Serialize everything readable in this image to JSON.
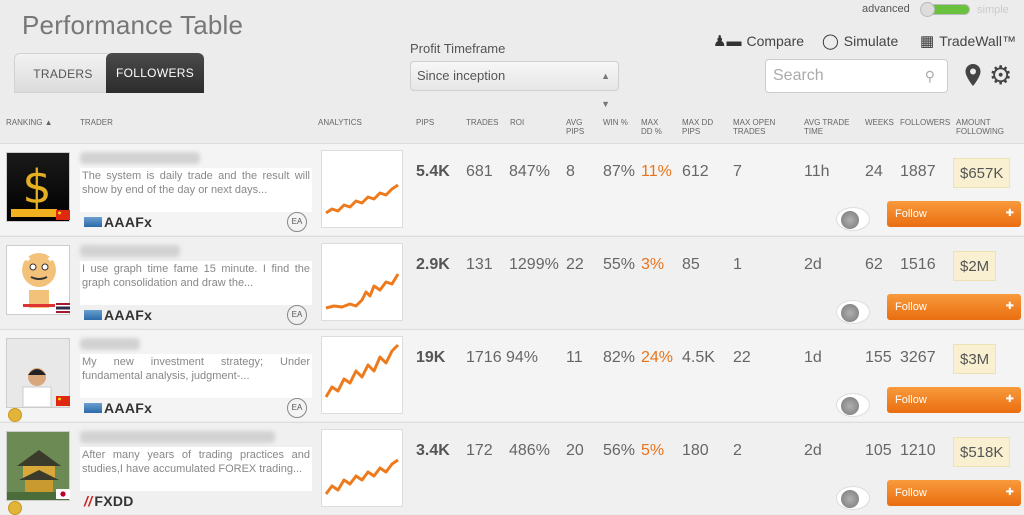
{
  "title": "Performance Table",
  "tabs": [
    "TRADERS",
    "FOLLOWERS"
  ],
  "profit_timeframe": {
    "label": "Profit Timeframe",
    "value": "Since inception"
  },
  "mode": {
    "advanced": "advanced",
    "simple": "simple"
  },
  "tools": {
    "compare": "Compare",
    "simulate": "Simulate",
    "tradewall": "TradeWall™"
  },
  "search": {
    "placeholder": "Search"
  },
  "headers": {
    "ranking": "RANKING ▲",
    "trader": "TRADER",
    "analytics": "ANALYTICS",
    "pips": "PIPS",
    "trades": "TRADES",
    "roi": "ROI",
    "avg_pips": "AVG PIPS",
    "win": "WIN %",
    "max_dd_pct": "MAX DD %",
    "max_dd_pips": "MAX DD PIPS",
    "max_open": "MAX OPEN TRADES",
    "avg_time": "AVG TRADE TIME",
    "weeks": "WEEKS",
    "followers": "FOLLOWERS",
    "amount": "AMOUNT FOLLOWING"
  },
  "colors": {
    "accent": "#e8731c",
    "follow_button": "#f28a2e",
    "amount_bg": "#f8f0d0"
  },
  "follow_label": "Follow",
  "rows": [
    {
      "desc": "The system is daily trade and the result will show by end of the day or next days...",
      "broker": "AAAFx",
      "badge": "EA",
      "pips": "5.4K",
      "trades": "681",
      "roi": "847%",
      "avg_pips": "8",
      "win": "87%",
      "max_dd": "11%",
      "max_dd_pips": "612",
      "max_open": "7",
      "avg_time": "11h",
      "weeks": "24",
      "followers": "1887",
      "amount": "$657K"
    },
    {
      "desc": "I use graph time fame 15 minute. I find the graph consolidation and draw the...",
      "broker": "AAAFx",
      "badge": "EA",
      "pips": "2.9K",
      "trades": "131",
      "roi": "1299%",
      "avg_pips": "22",
      "win": "55%",
      "max_dd": "3%",
      "max_dd_pips": "85",
      "max_open": "1",
      "avg_time": "2d",
      "weeks": "62",
      "followers": "1516",
      "amount": "$2M"
    },
    {
      "desc": "My new investment strategy; Under fundamental analysis, judgment-...",
      "broker": "AAAFx",
      "badge": "EA",
      "pips": "19K",
      "trades": "1716",
      "roi": "94%",
      "avg_pips": "11",
      "win": "82%",
      "max_dd": "24%",
      "max_dd_pips": "4.5K",
      "max_open": "22",
      "avg_time": "1d",
      "weeks": "155",
      "followers": "3267",
      "amount": "$3M"
    },
    {
      "desc": "After many years of trading practices and studies,I have accumulated FOREX trading...",
      "broker": "FXDD",
      "badge": "",
      "pips": "3.4K",
      "trades": "172",
      "roi": "486%",
      "avg_pips": "20",
      "win": "56%",
      "max_dd": "5%",
      "max_dd_pips": "180",
      "max_open": "2",
      "avg_time": "2d",
      "weeks": "105",
      "followers": "1210",
      "amount": "$518K"
    }
  ]
}
